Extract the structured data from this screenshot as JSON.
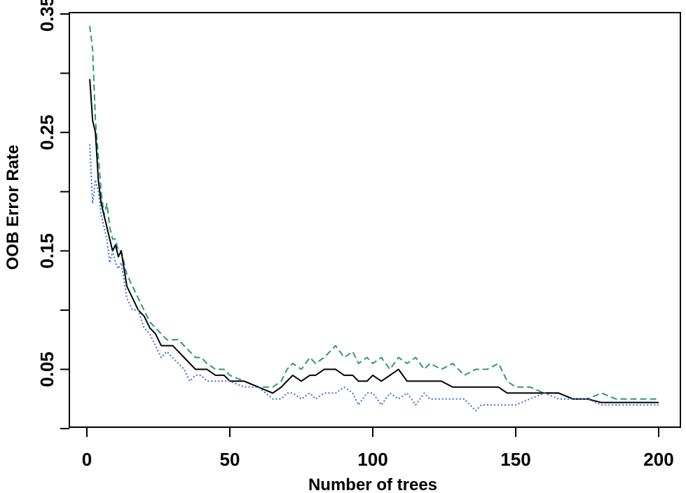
{
  "chart_data": {
    "type": "line",
    "title": "",
    "xlabel": "Number of trees",
    "ylabel": "OOB Error Rate",
    "xlim": [
      0,
      200
    ],
    "ylim": [
      0.0,
      0.35
    ],
    "xticks": [
      0,
      50,
      100,
      150,
      200
    ],
    "xtick_labels": [
      "0",
      "50",
      "100",
      "150",
      "200"
    ],
    "yticks": [
      0.0,
      0.05,
      0.1,
      0.15,
      0.2,
      0.25,
      0.3,
      0.35
    ],
    "ytick_labels": [
      "",
      "0.05",
      "",
      "0.15",
      "",
      "0.25",
      "",
      "0.35"
    ],
    "grid": false,
    "legend": "none",
    "series": [
      {
        "color": "#2e9a6e",
        "style": "dashed",
        "points": [
          [
            1,
            0.34
          ],
          [
            2,
            0.32
          ],
          [
            3,
            0.26
          ],
          [
            4,
            0.23
          ],
          [
            5,
            0.2
          ],
          [
            6,
            0.18
          ],
          [
            7,
            0.19
          ],
          [
            8,
            0.17
          ],
          [
            9,
            0.16
          ],
          [
            10,
            0.16
          ],
          [
            11,
            0.15
          ],
          [
            12,
            0.15
          ],
          [
            14,
            0.13
          ],
          [
            16,
            0.12
          ],
          [
            18,
            0.11
          ],
          [
            20,
            0.1
          ],
          [
            22,
            0.09
          ],
          [
            24,
            0.085
          ],
          [
            26,
            0.08
          ],
          [
            28,
            0.075
          ],
          [
            30,
            0.075
          ],
          [
            32,
            0.075
          ],
          [
            34,
            0.07
          ],
          [
            36,
            0.065
          ],
          [
            38,
            0.06
          ],
          [
            40,
            0.06
          ],
          [
            42,
            0.055
          ],
          [
            45,
            0.05
          ],
          [
            48,
            0.05
          ],
          [
            50,
            0.045
          ],
          [
            55,
            0.04
          ],
          [
            60,
            0.035
          ],
          [
            65,
            0.035
          ],
          [
            68,
            0.04
          ],
          [
            70,
            0.05
          ],
          [
            72,
            0.055
          ],
          [
            75,
            0.05
          ],
          [
            78,
            0.06
          ],
          [
            80,
            0.055
          ],
          [
            83,
            0.06
          ],
          [
            85,
            0.065
          ],
          [
            87,
            0.07
          ],
          [
            90,
            0.06
          ],
          [
            93,
            0.065
          ],
          [
            95,
            0.055
          ],
          [
            98,
            0.06
          ],
          [
            100,
            0.055
          ],
          [
            103,
            0.06
          ],
          [
            106,
            0.05
          ],
          [
            109,
            0.06
          ],
          [
            112,
            0.055
          ],
          [
            115,
            0.06
          ],
          [
            118,
            0.05
          ],
          [
            120,
            0.055
          ],
          [
            124,
            0.05
          ],
          [
            128,
            0.055
          ],
          [
            132,
            0.045
          ],
          [
            136,
            0.05
          ],
          [
            140,
            0.05
          ],
          [
            144,
            0.055
          ],
          [
            147,
            0.04
          ],
          [
            150,
            0.035
          ],
          [
            155,
            0.035
          ],
          [
            160,
            0.03
          ],
          [
            165,
            0.03
          ],
          [
            170,
            0.025
          ],
          [
            175,
            0.025
          ],
          [
            180,
            0.03
          ],
          [
            185,
            0.025
          ],
          [
            200,
            0.025
          ]
        ]
      },
      {
        "color": "#000000",
        "style": "solid",
        "points": [
          [
            1,
            0.295
          ],
          [
            2,
            0.26
          ],
          [
            3,
            0.25
          ],
          [
            4,
            0.21
          ],
          [
            5,
            0.19
          ],
          [
            6,
            0.18
          ],
          [
            7,
            0.17
          ],
          [
            8,
            0.16
          ],
          [
            9,
            0.15
          ],
          [
            10,
            0.155
          ],
          [
            11,
            0.145
          ],
          [
            12,
            0.15
          ],
          [
            14,
            0.12
          ],
          [
            16,
            0.11
          ],
          [
            18,
            0.1
          ],
          [
            20,
            0.095
          ],
          [
            22,
            0.085
          ],
          [
            24,
            0.08
          ],
          [
            26,
            0.07
          ],
          [
            28,
            0.07
          ],
          [
            30,
            0.07
          ],
          [
            32,
            0.065
          ],
          [
            34,
            0.06
          ],
          [
            36,
            0.055
          ],
          [
            38,
            0.05
          ],
          [
            40,
            0.05
          ],
          [
            42,
            0.05
          ],
          [
            45,
            0.045
          ],
          [
            48,
            0.045
          ],
          [
            50,
            0.04
          ],
          [
            55,
            0.04
          ],
          [
            60,
            0.035
          ],
          [
            65,
            0.03
          ],
          [
            68,
            0.035
          ],
          [
            70,
            0.04
          ],
          [
            72,
            0.045
          ],
          [
            75,
            0.04
          ],
          [
            78,
            0.045
          ],
          [
            80,
            0.045
          ],
          [
            83,
            0.05
          ],
          [
            85,
            0.05
          ],
          [
            87,
            0.05
          ],
          [
            90,
            0.045
          ],
          [
            93,
            0.045
          ],
          [
            95,
            0.04
          ],
          [
            98,
            0.04
          ],
          [
            100,
            0.045
          ],
          [
            103,
            0.04
          ],
          [
            106,
            0.045
          ],
          [
            109,
            0.05
          ],
          [
            112,
            0.04
          ],
          [
            115,
            0.04
          ],
          [
            118,
            0.04
          ],
          [
            120,
            0.04
          ],
          [
            124,
            0.04
          ],
          [
            128,
            0.035
          ],
          [
            132,
            0.035
          ],
          [
            136,
            0.035
          ],
          [
            140,
            0.035
          ],
          [
            144,
            0.035
          ],
          [
            147,
            0.03
          ],
          [
            150,
            0.03
          ],
          [
            155,
            0.03
          ],
          [
            160,
            0.03
          ],
          [
            165,
            0.03
          ],
          [
            170,
            0.025
          ],
          [
            175,
            0.025
          ],
          [
            180,
            0.022
          ],
          [
            185,
            0.022
          ],
          [
            200,
            0.022
          ]
        ]
      },
      {
        "color": "#3a6fd8",
        "style": "dotted",
        "points": [
          [
            1,
            0.24
          ],
          [
            2,
            0.19
          ],
          [
            3,
            0.21
          ],
          [
            4,
            0.2
          ],
          [
            5,
            0.18
          ],
          [
            6,
            0.17
          ],
          [
            7,
            0.16
          ],
          [
            8,
            0.14
          ],
          [
            9,
            0.15
          ],
          [
            10,
            0.14
          ],
          [
            11,
            0.135
          ],
          [
            12,
            0.14
          ],
          [
            14,
            0.11
          ],
          [
            16,
            0.1
          ],
          [
            18,
            0.1
          ],
          [
            20,
            0.085
          ],
          [
            22,
            0.08
          ],
          [
            24,
            0.07
          ],
          [
            26,
            0.06
          ],
          [
            28,
            0.065
          ],
          [
            30,
            0.06
          ],
          [
            32,
            0.055
          ],
          [
            34,
            0.05
          ],
          [
            36,
            0.04
          ],
          [
            38,
            0.045
          ],
          [
            40,
            0.045
          ],
          [
            42,
            0.04
          ],
          [
            45,
            0.04
          ],
          [
            48,
            0.04
          ],
          [
            50,
            0.04
          ],
          [
            55,
            0.035
          ],
          [
            60,
            0.035
          ],
          [
            65,
            0.025
          ],
          [
            68,
            0.025
          ],
          [
            70,
            0.03
          ],
          [
            72,
            0.03
          ],
          [
            75,
            0.025
          ],
          [
            78,
            0.03
          ],
          [
            80,
            0.025
          ],
          [
            83,
            0.03
          ],
          [
            85,
            0.03
          ],
          [
            87,
            0.03
          ],
          [
            90,
            0.035
          ],
          [
            93,
            0.03
          ],
          [
            95,
            0.02
          ],
          [
            98,
            0.03
          ],
          [
            100,
            0.03
          ],
          [
            103,
            0.02
          ],
          [
            106,
            0.03
          ],
          [
            109,
            0.025
          ],
          [
            112,
            0.03
          ],
          [
            115,
            0.02
          ],
          [
            118,
            0.03
          ],
          [
            120,
            0.025
          ],
          [
            124,
            0.025
          ],
          [
            128,
            0.025
          ],
          [
            132,
            0.025
          ],
          [
            136,
            0.015
          ],
          [
            138,
            0.02
          ],
          [
            140,
            0.02
          ],
          [
            145,
            0.02
          ],
          [
            150,
            0.02
          ],
          [
            155,
            0.025
          ],
          [
            160,
            0.03
          ],
          [
            165,
            0.025
          ],
          [
            170,
            0.025
          ],
          [
            175,
            0.025
          ],
          [
            180,
            0.02
          ],
          [
            185,
            0.02
          ],
          [
            200,
            0.02
          ]
        ]
      }
    ]
  }
}
